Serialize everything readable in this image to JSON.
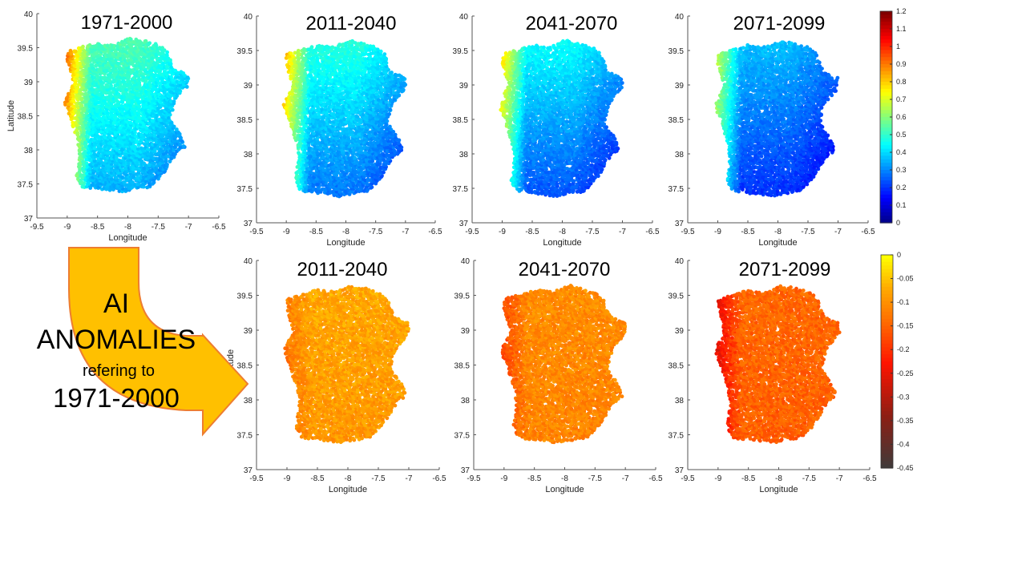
{
  "chart_data": [
    {
      "type": "heatmap",
      "title": "1971-2000",
      "xlabel": "Longitude",
      "ylabel": "Latitude",
      "xlim": [
        -9.5,
        -6.5
      ],
      "ylim": [
        37,
        40
      ],
      "xticks": [
        "-9.5",
        "-9",
        "-8.5",
        "-8",
        "-7.5",
        "-7",
        "-6.5"
      ],
      "yticks": [
        "37",
        "37.5",
        "38",
        "38.5",
        "39",
        "39.5",
        "40"
      ],
      "colorbar": "AI",
      "field": {
        "north": 0.55,
        "south": 0.35,
        "west_boost": 0.45,
        "east_drop": 0.1
      }
    },
    {
      "type": "heatmap",
      "title": "2011-2040",
      "xlabel": "Longitude",
      "ylabel": "",
      "xlim": [
        -9.5,
        -6.5
      ],
      "ylim": [
        37,
        40
      ],
      "xticks": [
        "-9.5",
        "-9",
        "-8.5",
        "-8",
        "-7.5",
        "-7",
        "-6.5"
      ],
      "yticks": [
        "37",
        "37.5",
        "38",
        "38.5",
        "39",
        "39.5",
        "40"
      ],
      "colorbar": "AI",
      "field": {
        "north": 0.5,
        "south": 0.28,
        "west_boost": 0.4,
        "east_drop": 0.1
      }
    },
    {
      "type": "heatmap",
      "title": "2041-2070",
      "xlabel": "Longitude",
      "ylabel": "",
      "xlim": [
        -9.5,
        -6.5
      ],
      "ylim": [
        37,
        40
      ],
      "xticks": [
        "-9.5",
        "-9",
        "-8.5",
        "-8",
        "-7.5",
        "-7",
        "-6.5"
      ],
      "yticks": [
        "37",
        "37.5",
        "38",
        "38.5",
        "39",
        "39.5",
        "40"
      ],
      "colorbar": "AI",
      "field": {
        "north": 0.46,
        "south": 0.24,
        "west_boost": 0.4,
        "east_drop": 0.1
      }
    },
    {
      "type": "heatmap",
      "title": "2071-2099",
      "xlabel": "Longitude",
      "ylabel": "",
      "xlim": [
        -9.5,
        -6.5
      ],
      "ylim": [
        37,
        40
      ],
      "xticks": [
        "-9.5",
        "-9",
        "-8.5",
        "-8",
        "-7.5",
        "-7",
        "-6.5"
      ],
      "yticks": [
        "37",
        "37.5",
        "38",
        "38.5",
        "39",
        "39.5",
        "40"
      ],
      "colorbar": "AI",
      "field": {
        "north": 0.38,
        "south": 0.2,
        "west_boost": 0.35,
        "east_drop": 0.08
      }
    },
    {
      "type": "heatmap",
      "title": "2011-2040",
      "xlabel": "Longitude",
      "ylabel": "Latitude",
      "xlim": [
        -9.5,
        -6.5
      ],
      "ylim": [
        37,
        40
      ],
      "xticks": [
        "-9.5",
        "-9",
        "-8.5",
        "-8",
        "-7.5",
        "-7",
        "-6.5"
      ],
      "yticks": [
        "37",
        "37.5",
        "38",
        "38.5",
        "39",
        "39.5",
        "40"
      ],
      "colorbar": "anomaly",
      "field": {
        "north": -0.07,
        "south": -0.09,
        "west_boost": -0.05,
        "east_drop": 0.0
      }
    },
    {
      "type": "heatmap",
      "title": "2041-2070",
      "xlabel": "Longitude",
      "ylabel": "",
      "xlim": [
        -9.5,
        -6.5
      ],
      "ylim": [
        37,
        40
      ],
      "xticks": [
        "-9.5",
        "-9",
        "-8.5",
        "-8",
        "-7.5",
        "-7",
        "-6.5"
      ],
      "yticks": [
        "37",
        "37.5",
        "38",
        "38.5",
        "39",
        "39.5",
        "40"
      ],
      "colorbar": "anomaly",
      "field": {
        "north": -0.1,
        "south": -0.11,
        "west_boost": -0.08,
        "east_drop": 0.0
      }
    },
    {
      "type": "heatmap",
      "title": "2071-2099",
      "xlabel": "Longitude",
      "ylabel": "",
      "xlim": [
        -9.5,
        -6.5
      ],
      "ylim": [
        37,
        40
      ],
      "xticks": [
        "-9.5",
        "-9",
        "-8.5",
        "-8",
        "-7.5",
        "-7",
        "-6.5"
      ],
      "yticks": [
        "37",
        "37.5",
        "38",
        "38.5",
        "39",
        "39.5",
        "40"
      ],
      "colorbar": "anomaly",
      "field": {
        "north": -0.14,
        "south": -0.15,
        "west_boost": -0.12,
        "east_drop": 0.0
      }
    }
  ],
  "colorbars": {
    "AI": {
      "colormap": "jet",
      "min": 0,
      "max": 1.2,
      "ticks": [
        "1.2",
        "1.1",
        "1",
        "0.9",
        "0.8",
        "0.7",
        "0.6",
        "0.5",
        "0.4",
        "0.3",
        "0.2",
        "0.1",
        "0"
      ]
    },
    "anomaly": {
      "colormap": "hot",
      "min": -0.45,
      "max": 0,
      "ticks": [
        "0",
        "-0.05",
        "-0.1",
        "-0.15",
        "-0.2",
        "-0.25",
        "-0.3",
        "-0.35",
        "-0.4",
        "-0.45"
      ]
    }
  },
  "arrow": {
    "line1": "AI",
    "line2": "ANOMALIES",
    "line3": "refering to",
    "line4": "1971-2000",
    "fill": "#ffc000",
    "stroke": "#ed7d31"
  }
}
